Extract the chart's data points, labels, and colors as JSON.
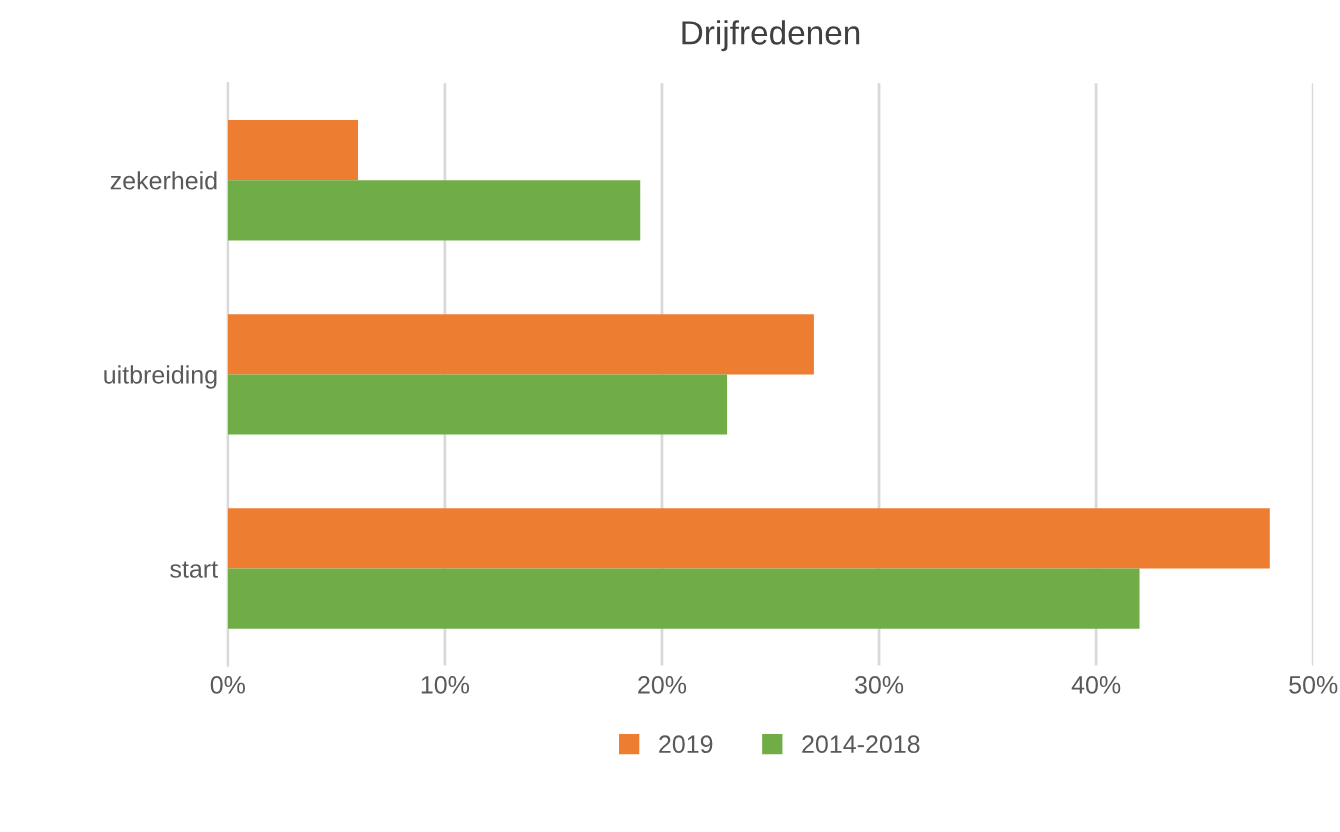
{
  "chart_data": {
    "type": "bar",
    "orientation": "horizontal",
    "title": "Drijfredenen",
    "categories": [
      "zekerheid",
      "uitbreiding",
      "start"
    ],
    "series": [
      {
        "name": "2019",
        "color": "#ed7d31",
        "values": [
          6,
          27,
          48
        ]
      },
      {
        "name": "2014-2018",
        "color": "#70ad47",
        "values": [
          19,
          23,
          42
        ]
      }
    ],
    "xlim": [
      0,
      50
    ],
    "xticks": [
      {
        "value": 0,
        "label": "0%"
      },
      {
        "value": 10,
        "label": "10%"
      },
      {
        "value": 20,
        "label": "20%"
      },
      {
        "value": 30,
        "label": "30%"
      },
      {
        "value": 40,
        "label": "40%"
      },
      {
        "value": 50,
        "label": "50%"
      }
    ],
    "grid": "x",
    "legend": "bottom"
  }
}
